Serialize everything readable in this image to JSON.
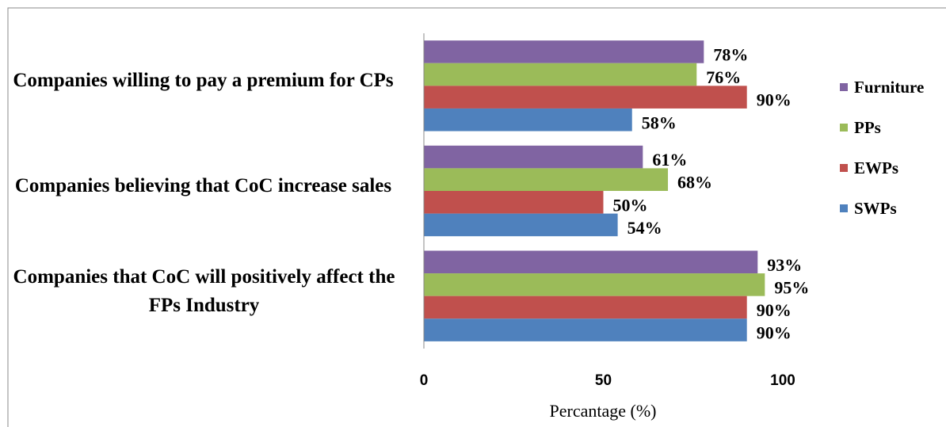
{
  "chart_data": {
    "type": "bar",
    "orientation": "horizontal",
    "x_label": "Percantage (%)",
    "categories": [
      "Companies willing to pay a premium for CPs",
      "Companies believing that CoC increase sales",
      "Companies that CoC will positively affect the FPs Industry"
    ],
    "series": [
      {
        "name": "Furniture",
        "color": "#8064a2",
        "values": [
          78,
          61,
          93
        ],
        "value_labels": [
          "78%",
          "61%",
          "93%"
        ]
      },
      {
        "name": "PPs",
        "color": "#9bbb59",
        "values": [
          76,
          68,
          95
        ],
        "value_labels": [
          "76%",
          "68%",
          "95%"
        ]
      },
      {
        "name": "EWPs",
        "color": "#c0504d",
        "values": [
          90,
          50,
          90
        ],
        "value_labels": [
          "90%",
          "50%",
          "90%"
        ]
      },
      {
        "name": "SWPs",
        "color": "#4f81bd",
        "values": [
          58,
          54,
          90
        ],
        "value_labels": [
          "58%",
          "54%",
          "90%"
        ]
      }
    ],
    "xlim": [
      0,
      100
    ],
    "xticks": [
      0,
      50,
      100
    ],
    "grid": false,
    "legend": "right"
  }
}
